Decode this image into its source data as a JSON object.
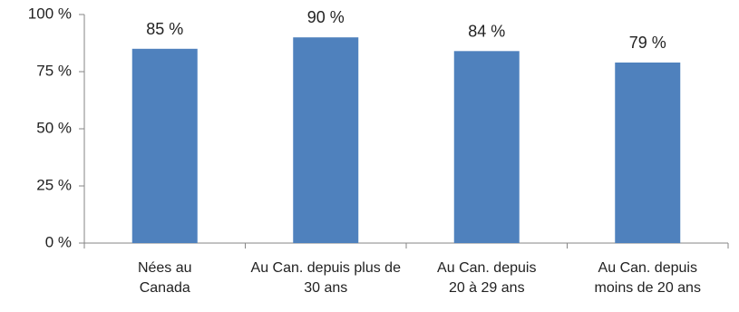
{
  "chart_data": {
    "type": "bar",
    "title": "",
    "xlabel": "",
    "ylabel": "",
    "ylim": [
      0,
      100
    ],
    "yticks": [
      0,
      25,
      50,
      75,
      100
    ],
    "ytick_labels": [
      "0 %",
      "25 %",
      "50 %",
      "75 %",
      "100 %"
    ],
    "categories": [
      [
        "Nées au",
        "Canada"
      ],
      [
        "Au Can. depuis plus de",
        "30 ans"
      ],
      [
        "Au Can. depuis",
        "20 à 29 ans"
      ],
      [
        "Au Can. depuis",
        "moins de 20 ans"
      ]
    ],
    "values": [
      85,
      90,
      84,
      79
    ],
    "data_labels": [
      "85  %",
      "90  %",
      "84  %",
      "79  %"
    ],
    "bar_color": "#4F81BD",
    "axis_color": "#868686",
    "grid": false,
    "legend": "none"
  }
}
